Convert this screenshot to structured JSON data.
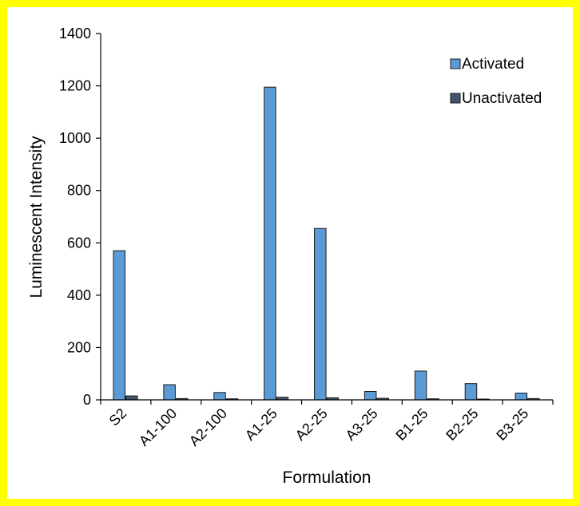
{
  "chart_data": {
    "type": "bar",
    "title": "",
    "xlabel": "Formulation",
    "ylabel": "Luminescent Intensity",
    "categories": [
      "S2",
      "A1-100",
      "A2-100",
      "A1-25",
      "A2-25",
      "A3-25",
      "B1-25",
      "B2-25",
      "B3-25"
    ],
    "series": [
      {
        "name": "Activated",
        "color": "#5b9bd5",
        "values": [
          570,
          58,
          28,
          1195,
          655,
          32,
          110,
          62,
          26
        ]
      },
      {
        "name": "Unactivated",
        "color": "#44546a",
        "values": [
          15,
          5,
          4,
          10,
          8,
          6,
          4,
          3,
          5
        ]
      }
    ],
    "ylim": [
      0,
      1400
    ],
    "yticks": [
      0,
      200,
      400,
      600,
      800,
      1000,
      1200,
      1400
    ],
    "grid": false,
    "legend_position": "top-right"
  }
}
